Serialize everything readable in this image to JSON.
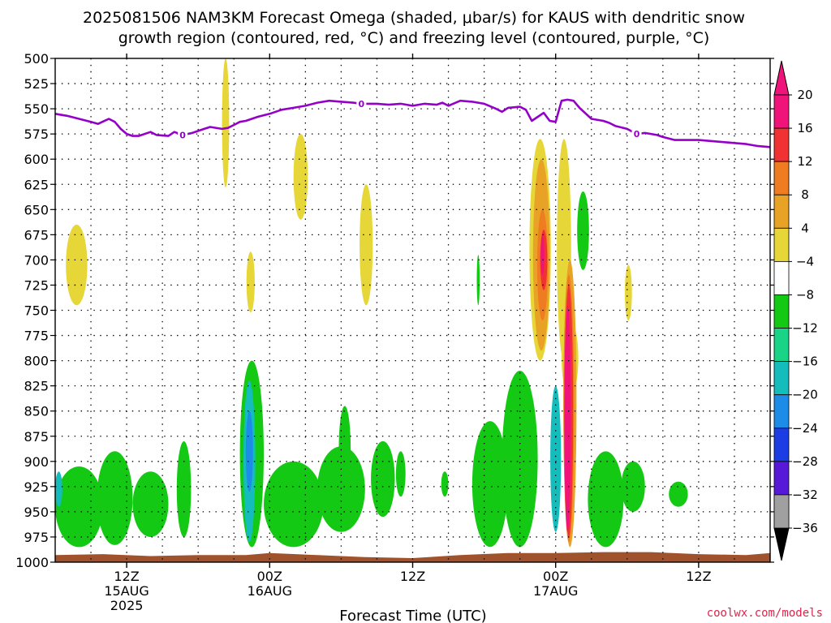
{
  "title": {
    "line1": "2025081506 NAM3KM Forecast Omega (shaded, μbar/s) for KAUS with dendritic snow",
    "line2": "growth region (contoured, red, °C) and freezing level (contoured, purple, °C)"
  },
  "credit": "coolwx.com/models",
  "chart_data": {
    "type": "time-height cross section",
    "title": "2025081506 NAM3KM Forecast Omega (shaded, μbar/s) for KAUS with dendritic snow growth region (contoured, red, °C) and freezing level (contoured, purple, °C)",
    "xlabel": "Forecast Time (UTC)",
    "ylabel": "",
    "x_range_hours": [
      6,
      66
    ],
    "y_range_mb": [
      500,
      1000
    ],
    "y_inverted": true,
    "y_ticks": [
      500,
      525,
      550,
      575,
      600,
      625,
      650,
      675,
      700,
      725,
      750,
      775,
      800,
      825,
      850,
      875,
      900,
      925,
      950,
      975,
      1000
    ],
    "x_ticks": [
      {
        "hour": 12,
        "line1": "12Z",
        "line2": "15AUG",
        "line3": "2025"
      },
      {
        "hour": 24,
        "line1": "00Z",
        "line2": "16AUG",
        "line3": ""
      },
      {
        "hour": 36,
        "line1": "12Z",
        "line2": "",
        "line3": ""
      },
      {
        "hour": 48,
        "line1": "00Z",
        "line2": "17AUG",
        "line3": ""
      },
      {
        "hour": 60,
        "line1": "12Z",
        "line2": "",
        "line3": ""
      }
    ],
    "grid": true,
    "colorbar": {
      "labels": [
        "20",
        "16",
        "12",
        "8",
        "4",
        "−4",
        "−8",
        "−12",
        "−16",
        "−20",
        "−24",
        "−28",
        "−32",
        "−36"
      ],
      "colors": [
        "#f0147a",
        "#f03232",
        "#ef7c20",
        "#e8a326",
        "#e6d637",
        "#ffffff",
        "#13c913",
        "#19d387",
        "#14bcbc",
        "#1c8ce8",
        "#1c3ce4",
        "#5818d8",
        "#9412c8",
        "#a0a0a0"
      ],
      "top_arrow_color": "#f0147a",
      "bottom_arrow_color": "#000000"
    },
    "freezing_level": {
      "contour_value": "0",
      "color": "#9400c8",
      "label_hours": [
        16.7,
        31.7,
        54.8
      ],
      "points": [
        [
          6.0,
          555
        ],
        [
          7.0,
          557
        ],
        [
          8.0,
          560
        ],
        [
          9.0,
          563
        ],
        [
          9.6,
          565
        ],
        [
          10.5,
          560
        ],
        [
          11.0,
          563
        ],
        [
          11.5,
          570
        ],
        [
          12.0,
          575
        ],
        [
          12.5,
          577
        ],
        [
          13.0,
          577
        ],
        [
          14.0,
          573
        ],
        [
          14.5,
          576
        ],
        [
          15.5,
          577
        ],
        [
          16.0,
          573
        ],
        [
          16.7,
          576
        ],
        [
          17.5,
          574
        ],
        [
          18.0,
          572
        ],
        [
          18.5,
          570
        ],
        [
          19.0,
          568
        ],
        [
          20.0,
          570
        ],
        [
          20.5,
          569
        ],
        [
          21.0,
          566
        ],
        [
          21.5,
          563
        ],
        [
          22.0,
          562
        ],
        [
          23.0,
          558
        ],
        [
          24.0,
          555
        ],
        [
          25.0,
          551
        ],
        [
          26.0,
          549
        ],
        [
          27.0,
          547
        ],
        [
          28.0,
          544
        ],
        [
          29.0,
          542
        ],
        [
          30.0,
          543
        ],
        [
          31.0,
          544
        ],
        [
          31.7,
          545
        ],
        [
          33.0,
          545
        ],
        [
          34.0,
          546
        ],
        [
          35.0,
          545
        ],
        [
          36.0,
          547
        ],
        [
          37.0,
          545
        ],
        [
          38.0,
          546
        ],
        [
          38.5,
          544
        ],
        [
          39.0,
          547
        ],
        [
          40.0,
          542
        ],
        [
          41.0,
          543
        ],
        [
          42.0,
          545
        ],
        [
          43.0,
          550
        ],
        [
          43.5,
          553
        ],
        [
          44.0,
          549
        ],
        [
          45.0,
          548
        ],
        [
          45.5,
          551
        ],
        [
          46.0,
          562
        ],
        [
          46.5,
          558
        ],
        [
          47.0,
          554
        ],
        [
          47.5,
          562
        ],
        [
          48.0,
          563
        ],
        [
          48.5,
          542
        ],
        [
          49.0,
          541
        ],
        [
          49.5,
          542
        ],
        [
          50.0,
          549
        ],
        [
          51.0,
          560
        ],
        [
          52.0,
          562
        ],
        [
          52.5,
          564
        ],
        [
          53.0,
          567
        ],
        [
          54.0,
          570
        ],
        [
          54.8,
          575
        ],
        [
          55.5,
          574
        ],
        [
          56.5,
          576
        ],
        [
          57.0,
          578
        ],
        [
          58.0,
          581
        ],
        [
          59.0,
          581
        ],
        [
          60.0,
          581
        ],
        [
          61.0,
          582
        ],
        [
          62.0,
          583
        ],
        [
          63.0,
          584
        ],
        [
          64.0,
          585
        ],
        [
          65.0,
          587
        ],
        [
          66.0,
          588
        ]
      ]
    },
    "omega_regions": [
      {
        "color": "#e6d637",
        "center_hour": 20.3,
        "top_mb": 500,
        "bottom_mb": 628,
        "half_width_hours": 0.3
      },
      {
        "color": "#e6d637",
        "center_hour": 7.8,
        "top_mb": 665,
        "bottom_mb": 745,
        "half_width_hours": 0.9
      },
      {
        "color": "#e6d637",
        "center_hour": 22.4,
        "top_mb": 692,
        "bottom_mb": 752,
        "half_width_hours": 0.35
      },
      {
        "color": "#e6d637",
        "center_hour": 26.6,
        "top_mb": 575,
        "bottom_mb": 660,
        "half_width_hours": 0.6
      },
      {
        "color": "#e6d637",
        "center_hour": 32.1,
        "top_mb": 625,
        "bottom_mb": 745,
        "half_width_hours": 0.55
      },
      {
        "color": "#e6d637",
        "center_hour": 54.1,
        "top_mb": 705,
        "bottom_mb": 760,
        "half_width_hours": 0.3
      },
      {
        "color": "#e6d637",
        "center_hour": 46.7,
        "top_mb": 580,
        "bottom_mb": 800,
        "half_width_hours": 0.9
      },
      {
        "color": "#e6d637",
        "center_hour": 48.7,
        "top_mb": 580,
        "bottom_mb": 800,
        "half_width_hours": 0.6
      },
      {
        "color": "#e6d637",
        "center_hour": 49.2,
        "top_mb": 760,
        "bottom_mb": 835,
        "half_width_hours": 0.7
      },
      {
        "color": "#e8a326",
        "center_hour": 46.8,
        "top_mb": 600,
        "bottom_mb": 790,
        "half_width_hours": 0.7
      },
      {
        "color": "#ef7c20",
        "center_hour": 46.9,
        "top_mb": 650,
        "bottom_mb": 760,
        "half_width_hours": 0.45
      },
      {
        "color": "#f03232",
        "center_hour": 47.0,
        "top_mb": 670,
        "bottom_mb": 730,
        "half_width_hours": 0.3
      },
      {
        "color": "#13c913",
        "center_hour": 8.0,
        "top_mb": 905,
        "bottom_mb": 985,
        "half_width_hours": 2.0
      },
      {
        "color": "#13c913",
        "center_hour": 11.0,
        "top_mb": 890,
        "bottom_mb": 983,
        "half_width_hours": 1.5
      },
      {
        "color": "#13c913",
        "center_hour": 14.0,
        "top_mb": 910,
        "bottom_mb": 975,
        "half_width_hours": 1.5
      },
      {
        "color": "#13c913",
        "center_hour": 16.8,
        "top_mb": 880,
        "bottom_mb": 975,
        "half_width_hours": 0.6
      },
      {
        "color": "#13c913",
        "center_hour": 22.5,
        "top_mb": 800,
        "bottom_mb": 985,
        "half_width_hours": 1.0
      },
      {
        "color": "#13c913",
        "center_hour": 26.0,
        "top_mb": 900,
        "bottom_mb": 985,
        "half_width_hours": 2.5
      },
      {
        "color": "#13c913",
        "center_hour": 30.0,
        "top_mb": 885,
        "bottom_mb": 970,
        "half_width_hours": 2.0
      },
      {
        "color": "#13c913",
        "center_hour": 30.3,
        "top_mb": 845,
        "bottom_mb": 930,
        "half_width_hours": 0.5
      },
      {
        "color": "#13c913",
        "center_hour": 33.5,
        "top_mb": 880,
        "bottom_mb": 955,
        "half_width_hours": 1.0
      },
      {
        "color": "#13c913",
        "center_hour": 35.0,
        "top_mb": 890,
        "bottom_mb": 935,
        "half_width_hours": 0.4
      },
      {
        "color": "#13c913",
        "center_hour": 38.7,
        "top_mb": 910,
        "bottom_mb": 935,
        "half_width_hours": 0.3
      },
      {
        "color": "#13c913",
        "center_hour": 42.5,
        "top_mb": 860,
        "bottom_mb": 985,
        "half_width_hours": 1.5
      },
      {
        "color": "#13c913",
        "center_hour": 45.0,
        "top_mb": 810,
        "bottom_mb": 985,
        "half_width_hours": 1.5
      },
      {
        "color": "#13c913",
        "center_hour": 50.3,
        "top_mb": 632,
        "bottom_mb": 710,
        "half_width_hours": 0.5
      },
      {
        "color": "#13c913",
        "center_hour": 52.2,
        "top_mb": 890,
        "bottom_mb": 985,
        "half_width_hours": 1.5
      },
      {
        "color": "#13c913",
        "center_hour": 54.5,
        "top_mb": 900,
        "bottom_mb": 950,
        "half_width_hours": 1.0
      },
      {
        "color": "#13c913",
        "center_hour": 58.3,
        "top_mb": 920,
        "bottom_mb": 945,
        "half_width_hours": 0.8
      },
      {
        "color": "#13c913",
        "center_hour": 41.5,
        "top_mb": 695,
        "bottom_mb": 745,
        "half_width_hours": 0.12
      },
      {
        "color": "#14bcbc",
        "center_hour": 6.3,
        "top_mb": 910,
        "bottom_mb": 945,
        "half_width_hours": 0.3
      },
      {
        "color": "#14bcbc",
        "center_hour": 22.3,
        "top_mb": 820,
        "bottom_mb": 980,
        "half_width_hours": 0.5
      },
      {
        "color": "#14bcbc",
        "center_hour": 48.0,
        "top_mb": 825,
        "bottom_mb": 970,
        "half_width_hours": 0.45
      },
      {
        "color": "#1c8ce8",
        "center_hour": 22.3,
        "top_mb": 850,
        "bottom_mb": 930,
        "half_width_hours": 0.3
      },
      {
        "color": "#e8a326",
        "center_hour": 49.2,
        "top_mb": 700,
        "bottom_mb": 985,
        "half_width_hours": 0.55
      },
      {
        "color": "#ef7c20",
        "center_hour": 49.1,
        "top_mb": 715,
        "bottom_mb": 980,
        "half_width_hours": 0.45
      },
      {
        "color": "#f03232",
        "center_hour": 49.1,
        "top_mb": 725,
        "bottom_mb": 975,
        "half_width_hours": 0.36
      },
      {
        "color": "#f0147a",
        "center_hour": 49.0,
        "top_mb": 745,
        "bottom_mb": 970,
        "half_width_hours": 0.28
      },
      {
        "color": "#f0147a",
        "center_hour": 46.9,
        "top_mb": 675,
        "bottom_mb": 715,
        "half_width_hours": 0.15
      }
    ],
    "surface_layer": {
      "color": "#a0522d",
      "points": [
        [
          6,
          993
        ],
        [
          10,
          992
        ],
        [
          14,
          994
        ],
        [
          18,
          993
        ],
        [
          22,
          993
        ],
        [
          24,
          991
        ],
        [
          28,
          993
        ],
        [
          32,
          995
        ],
        [
          36,
          996
        ],
        [
          40,
          993
        ],
        [
          44,
          991
        ],
        [
          48,
          991
        ],
        [
          52,
          990
        ],
        [
          56,
          990
        ],
        [
          60,
          992
        ],
        [
          64,
          993
        ],
        [
          66,
          991
        ]
      ]
    }
  }
}
